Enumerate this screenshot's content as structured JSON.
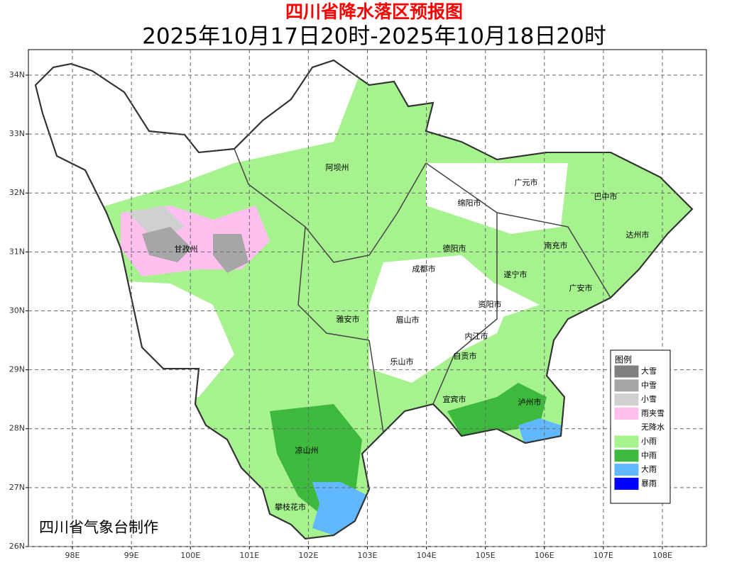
{
  "header": {
    "title": "四川省降水落区预报图",
    "subtitle": "2025年10月17日20时-2025年10月18日20时"
  },
  "map": {
    "xlim": [
      97.254,
      108.746
    ],
    "ylim": [
      26,
      34.433
    ],
    "xticks": [
      {
        "value": 98,
        "label": "98E"
      },
      {
        "value": 99,
        "label": "99E"
      },
      {
        "value": 100,
        "label": "100E"
      },
      {
        "value": 101,
        "label": "101E"
      },
      {
        "value": 102,
        "label": "102E"
      },
      {
        "value": 103,
        "label": "103E"
      },
      {
        "value": 104,
        "label": "104E"
      },
      {
        "value": 105,
        "label": "105E"
      },
      {
        "value": 106,
        "label": "106E"
      },
      {
        "value": 107,
        "label": "107E"
      },
      {
        "value": 108,
        "label": "108E"
      }
    ],
    "yticks": [
      {
        "value": 26,
        "label": "26N"
      },
      {
        "value": 27,
        "label": "27N"
      },
      {
        "value": 28,
        "label": "28N"
      },
      {
        "value": 29,
        "label": "29N"
      },
      {
        "value": 30,
        "label": "30N"
      },
      {
        "value": 31,
        "label": "31N"
      },
      {
        "value": 32,
        "label": "32N"
      },
      {
        "value": 33,
        "label": "33N"
      },
      {
        "value": 34,
        "label": "34N"
      }
    ],
    "cities": [
      "阿坝州",
      "广元市",
      "巴中市",
      "绵阳市",
      "达州市",
      "甘孜州",
      "德阳市",
      "南充市",
      "成都市",
      "遂宁市",
      "广安市",
      "资阳市",
      "雅安市",
      "眉山市",
      "内江市",
      "自贡市",
      "乐山市",
      "宜宾市",
      "泸州市",
      "凉山州",
      "攀枝花市"
    ],
    "credit": "四川省气象台制作"
  },
  "legend": {
    "title": "图例",
    "items": [
      {
        "label": "大雪",
        "color": "#7f7f7f"
      },
      {
        "label": "中雪",
        "color": "#a6a6a6"
      },
      {
        "label": "小雪",
        "color": "#d0d0d0"
      },
      {
        "label": "雨夹雪",
        "color": "#ffc0f0"
      },
      {
        "label": "无降水",
        "color": "#ffffff"
      },
      {
        "label": "小雨",
        "color": "#a6f28f"
      },
      {
        "label": "中雨",
        "color": "#3dba3d"
      },
      {
        "label": "大雨",
        "color": "#61b8ff"
      },
      {
        "label": "暴雨",
        "color": "#0000fe"
      }
    ]
  }
}
